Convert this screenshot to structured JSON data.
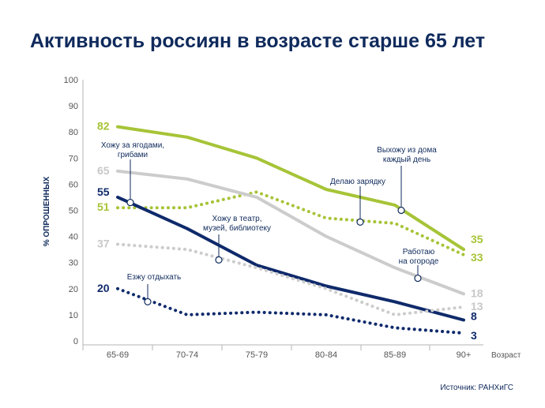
{
  "title": "Активность россиян в возрасте старше 65 лет",
  "source": "Источник: РАНХиГС",
  "chart_data": {
    "type": "line",
    "title": "Активность россиян в возрасте старше 65 лет",
    "xlabel": "Возраст",
    "ylabel": "% ОПРОШЕННЫХ",
    "categories": [
      "65-69",
      "70-74",
      "75-79",
      "80-84",
      "85-89",
      "90+"
    ],
    "ylim": [
      0,
      100
    ],
    "yticks": [
      0,
      10,
      20,
      30,
      40,
      50,
      60,
      70,
      80,
      90,
      100
    ],
    "grid": false,
    "series": [
      {
        "name": "Выхожу из дома каждый день",
        "color": "#a6c437",
        "dashed": false,
        "values": [
          82,
          78,
          70,
          58,
          52,
          35
        ],
        "start_label": "82",
        "end_label": "35"
      },
      {
        "name": "Делаю зарядку",
        "color": "#a6c437",
        "dashed": true,
        "values": [
          51,
          51,
          57,
          47,
          45,
          33
        ],
        "start_label": "51",
        "end_label": "33"
      },
      {
        "name": "Хожу за ягодами, грибами",
        "color": "#0f2a6b",
        "dashed": false,
        "values": [
          55,
          43,
          29,
          21,
          15,
          8
        ],
        "start_label": "55",
        "end_label": "8"
      },
      {
        "name": "Работаю на огороде",
        "color": "#cccccc",
        "dashed": false,
        "values": [
          65,
          62,
          55,
          40,
          28,
          18
        ],
        "start_label": "65",
        "end_label": "18"
      },
      {
        "name": "Хожу в театр, музей, библиотеку",
        "color": "#cccccc",
        "dashed": true,
        "values": [
          37,
          35,
          28,
          20,
          10,
          13
        ],
        "start_label": "37",
        "end_label": "13"
      },
      {
        "name": "Езжу отдыхать",
        "color": "#0f2a6b",
        "dashed": true,
        "values": [
          20,
          10,
          11,
          10,
          5,
          3
        ],
        "start_label": "20",
        "end_label": "3"
      }
    ],
    "annotations": [
      {
        "lines": [
          "Хожу за ягодами,",
          "грибами"
        ],
        "color": "#0f2a5c"
      },
      {
        "lines": [
          "Выхожу из дома",
          "каждый день"
        ],
        "color": "#0f2a5c"
      },
      {
        "lines": [
          "Делаю зарядку"
        ],
        "color": "#0f2a5c"
      },
      {
        "lines": [
          "Хожу в театр,",
          "музей, библиотеку"
        ],
        "color": "#0f2a5c"
      },
      {
        "lines": [
          "Работаю",
          "на огороде"
        ],
        "color": "#0f2a5c"
      },
      {
        "lines": [
          "Езжу отдыхать"
        ],
        "color": "#0f2a5c"
      }
    ]
  }
}
